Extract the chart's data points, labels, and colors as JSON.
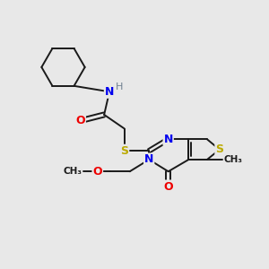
{
  "background_color": "#e8e8e8",
  "bond_color": "#1a1a1a",
  "N_color": "#0000ee",
  "O_color": "#ee0000",
  "S_color": "#bbaa00",
  "NH_color": "#708090",
  "figsize": [
    3.0,
    3.0
  ],
  "dpi": 100,
  "xlim": [
    0,
    10
  ],
  "ylim": [
    0,
    10
  ]
}
